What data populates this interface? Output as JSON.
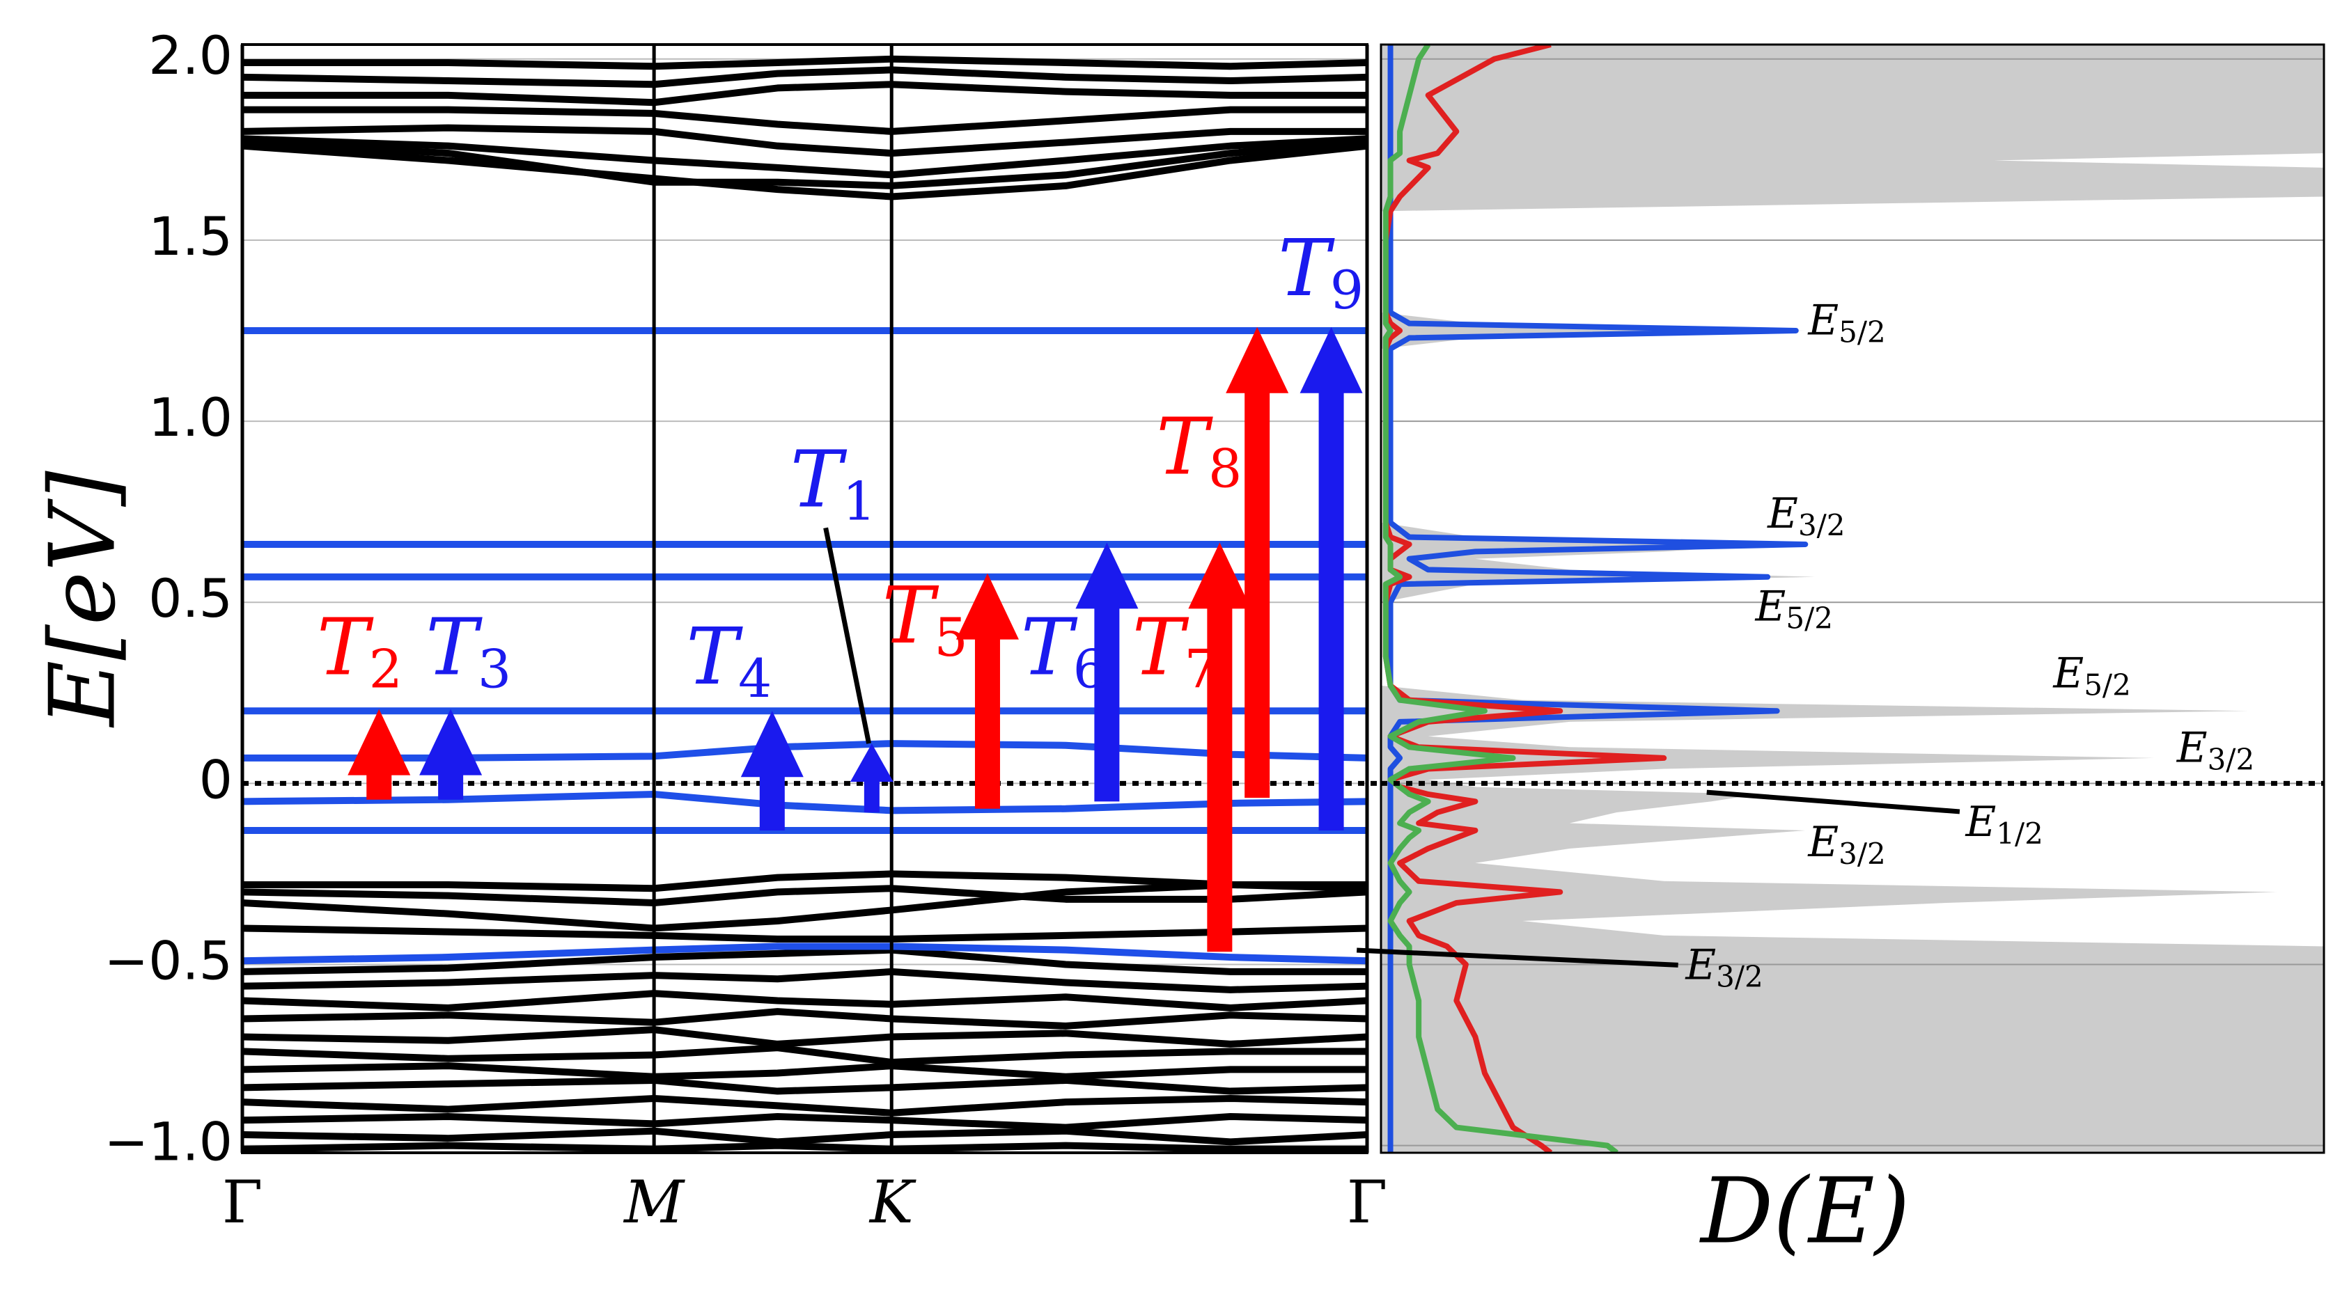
{
  "chart_data": [
    {
      "type": "line",
      "ylabel": "E[eV]",
      "x": [
        0,
        0.5,
        1,
        1.3,
        1.577,
        2.0,
        2.4,
        2.732
      ],
      "xlim": [
        0,
        2.732
      ],
      "xticks": [
        {
          "value": 0,
          "label": "Γ"
        },
        {
          "value": 1,
          "label": "M"
        },
        {
          "value": 1.577,
          "label": "K"
        },
        {
          "value": 2.732,
          "label": "Γ"
        }
      ],
      "ylim": [
        -1.02,
        2.04
      ],
      "yticks": [
        {
          "value": 2,
          "label": "2.0"
        },
        {
          "value": 1.5,
          "label": "1.5"
        },
        {
          "value": 1,
          "label": "1.0"
        },
        {
          "value": 0.5,
          "label": "0.5"
        },
        0,
        {
          "value": -0.5,
          "label": "−0.5"
        },
        {
          "value": -1,
          "label": "−1.0"
        }
      ],
      "grid": true,
      "reference_line": 0,
      "series": [
        {
          "color": "#000000",
          "values": [
            1.99,
            1.99,
            1.98,
            1.99,
            2.0,
            1.99,
            1.98,
            1.99
          ]
        },
        {
          "color": "#000000",
          "values": [
            1.95,
            1.94,
            1.93,
            1.96,
            1.97,
            1.95,
            1.94,
            1.95
          ]
        },
        {
          "color": "#000000",
          "values": [
            1.9,
            1.9,
            1.88,
            1.92,
            1.93,
            1.91,
            1.9,
            1.9
          ]
        },
        {
          "color": "#000000",
          "values": [
            1.86,
            1.86,
            1.85,
            1.82,
            1.8,
            1.83,
            1.86,
            1.86
          ]
        },
        {
          "color": "#000000",
          "values": [
            1.8,
            1.81,
            1.8,
            1.76,
            1.74,
            1.77,
            1.8,
            1.8
          ]
        },
        {
          "color": "#000000",
          "values": [
            1.78,
            1.76,
            1.72,
            1.7,
            1.68,
            1.72,
            1.76,
            1.78
          ]
        },
        {
          "color": "#000000",
          "values": [
            1.76,
            1.72,
            1.67,
            1.64,
            1.62,
            1.65,
            1.72,
            1.76
          ]
        },
        {
          "color": "#000000",
          "values": [
            1.77,
            1.74,
            1.66,
            1.66,
            1.65,
            1.68,
            1.74,
            1.77
          ]
        },
        {
          "color": "#000000",
          "values": [
            -0.28,
            -0.28,
            -0.29,
            -0.26,
            -0.25,
            -0.26,
            -0.28,
            -0.28
          ]
        },
        {
          "color": "#000000",
          "values": [
            -0.3,
            -0.31,
            -0.33,
            -0.3,
            -0.29,
            -0.32,
            -0.32,
            -0.3
          ]
        },
        {
          "color": "#000000",
          "values": [
            -0.33,
            -0.36,
            -0.4,
            -0.38,
            -0.35,
            -0.3,
            -0.28,
            -0.29
          ]
        },
        {
          "color": "#000000",
          "values": [
            -0.4,
            -0.41,
            -0.42,
            -0.43,
            -0.43,
            -0.42,
            -0.41,
            -0.4
          ]
        },
        {
          "color": "#000000",
          "values": [
            -0.52,
            -0.51,
            -0.48,
            -0.47,
            -0.46,
            -0.5,
            -0.52,
            -0.52
          ]
        },
        {
          "color": "#000000",
          "values": [
            -0.56,
            -0.55,
            -0.53,
            -0.54,
            -0.52,
            -0.55,
            -0.57,
            -0.56
          ]
        },
        {
          "color": "#000000",
          "values": [
            -0.6,
            -0.62,
            -0.58,
            -0.6,
            -0.61,
            -0.59,
            -0.62,
            -0.6
          ]
        },
        {
          "color": "#000000",
          "values": [
            -0.65,
            -0.64,
            -0.66,
            -0.63,
            -0.65,
            -0.67,
            -0.64,
            -0.65
          ]
        },
        {
          "color": "#000000",
          "values": [
            -0.7,
            -0.71,
            -0.68,
            -0.72,
            -0.7,
            -0.69,
            -0.72,
            -0.7
          ]
        },
        {
          "color": "#000000",
          "values": [
            -0.74,
            -0.76,
            -0.75,
            -0.73,
            -0.77,
            -0.75,
            -0.74,
            -0.74
          ]
        },
        {
          "color": "#000000",
          "values": [
            -0.79,
            -0.78,
            -0.81,
            -0.8,
            -0.78,
            -0.81,
            -0.79,
            -0.79
          ]
        },
        {
          "color": "#000000",
          "values": [
            -0.84,
            -0.83,
            -0.82,
            -0.85,
            -0.84,
            -0.82,
            -0.85,
            -0.84
          ]
        },
        {
          "color": "#000000",
          "values": [
            -0.88,
            -0.9,
            -0.87,
            -0.89,
            -0.91,
            -0.88,
            -0.87,
            -0.88
          ]
        },
        {
          "color": "#000000",
          "values": [
            -0.93,
            -0.92,
            -0.94,
            -0.92,
            -0.93,
            -0.95,
            -0.92,
            -0.93
          ]
        },
        {
          "color": "#000000",
          "values": [
            -0.97,
            -0.98,
            -0.96,
            -0.99,
            -0.97,
            -0.96,
            -0.99,
            -0.97
          ]
        },
        {
          "color": "#000000",
          "values": [
            -1.01,
            -1.0,
            -1.01,
            -1.0,
            -1.01,
            -1.0,
            -1.01,
            -1.01
          ]
        },
        {
          "color": "#1f4fe8",
          "values": [
            1.25,
            1.25,
            1.25,
            1.25,
            1.25,
            1.25,
            1.25,
            1.25
          ]
        },
        {
          "color": "#1f4fe8",
          "values": [
            0.66,
            0.66,
            0.66,
            0.66,
            0.66,
            0.66,
            0.66,
            0.66
          ]
        },
        {
          "color": "#1f4fe8",
          "values": [
            0.57,
            0.57,
            0.57,
            0.57,
            0.57,
            0.57,
            0.57,
            0.57
          ]
        },
        {
          "color": "#1f4fe8",
          "values": [
            0.2,
            0.2,
            0.2,
            0.2,
            0.2,
            0.2,
            0.2,
            0.2
          ]
        },
        {
          "color": "#1f4fe8",
          "values": [
            0.07,
            0.07,
            0.075,
            0.1,
            0.11,
            0.105,
            0.08,
            0.07
          ]
        },
        {
          "color": "#1f4fe8",
          "values": [
            -0.05,
            -0.045,
            -0.03,
            -0.06,
            -0.075,
            -0.07,
            -0.055,
            -0.05
          ]
        },
        {
          "color": "#1f4fe8",
          "values": [
            -0.13,
            -0.13,
            -0.13,
            -0.13,
            -0.13,
            -0.13,
            -0.13,
            -0.13
          ]
        },
        {
          "color": "#1f4fe8",
          "values": [
            -0.49,
            -0.48,
            -0.46,
            -0.45,
            -0.45,
            -0.46,
            -0.48,
            -0.49
          ]
        }
      ],
      "annotations": [
        {
          "label": "T",
          "subscript": "2",
          "color": "#ff0000",
          "x": 0.332,
          "y_start": -0.045,
          "y_end": 0.205
        },
        {
          "label": "T",
          "subscript": "3",
          "color": "#1a1aee",
          "x": 0.506,
          "y_start": -0.045,
          "y_end": 0.205
        },
        {
          "label": "T",
          "subscript": "4",
          "color": "#1a1aee",
          "x": 1.287,
          "y_start": -0.13,
          "y_end": 0.2
        },
        {
          "label": "T",
          "subscript": "1",
          "color": "#1a1aee",
          "x": 1.529,
          "y_start": -0.08,
          "y_end": 0.11
        },
        {
          "label": "T",
          "subscript": "5",
          "color": "#ff0000",
          "x": 1.81,
          "y_start": -0.07,
          "y_end": 0.58
        },
        {
          "label": "T",
          "subscript": "6",
          "color": "#1a1aee",
          "x": 2.1,
          "y_start": -0.05,
          "y_end": 0.665
        },
        {
          "label": "T",
          "subscript": "7",
          "color": "#ff0000",
          "x": 2.374,
          "y_start": -0.465,
          "y_end": 0.665
        },
        {
          "label": "T",
          "subscript": "8",
          "color": "#ff0000",
          "x": 2.465,
          "y_start": -0.04,
          "y_end": 1.26
        },
        {
          "label": "T",
          "subscript": "9",
          "color": "#1a1aee",
          "x": 2.645,
          "y_start": -0.13,
          "y_end": 1.26
        }
      ]
    },
    {
      "type": "area",
      "xlabel": "D(E)",
      "xlim": [
        0,
        1
      ],
      "ylim": [
        -1.02,
        2.04
      ],
      "yticks": [
        -1,
        -0.5,
        0,
        0.5,
        1,
        1.5,
        2
      ],
      "show_tick_labels": false,
      "grid": true,
      "reference_line": 0,
      "y": [
        -1.02,
        -1.0,
        -0.95,
        -0.9,
        -0.8,
        -0.7,
        -0.6,
        -0.5,
        -0.45,
        -0.42,
        -0.38,
        -0.33,
        -0.3,
        -0.27,
        -0.22,
        -0.18,
        -0.15,
        -0.13,
        -0.11,
        -0.08,
        -0.05,
        -0.03,
        -0.01,
        0.01,
        0.04,
        0.07,
        0.1,
        0.13,
        0.17,
        0.2,
        0.23,
        0.27,
        0.35,
        0.5,
        0.55,
        0.57,
        0.59,
        0.62,
        0.64,
        0.66,
        0.68,
        0.72,
        0.9,
        1.2,
        1.23,
        1.25,
        1.27,
        1.3,
        1.5,
        1.58,
        1.62,
        1.7,
        1.72,
        1.74,
        1.8,
        1.9,
        2.0,
        2.04
      ],
      "series": [
        {
          "color": "#cccccc",
          "fill": true,
          "values": [
            1,
            1,
            1,
            1,
            1,
            1,
            1,
            1,
            1,
            0.3,
            0.15,
            0.6,
            0.95,
            0.3,
            0.1,
            0.2,
            0.35,
            0.45,
            0.2,
            0.25,
            0.35,
            0.4,
            0.1,
            0.05,
            0.3,
            0.82,
            0.2,
            0.05,
            0.2,
            0.92,
            0.15,
            0,
            0,
            0,
            0.1,
            0.46,
            0.2,
            0.1,
            0.3,
            0.42,
            0.1,
            0,
            0,
            0,
            0.1,
            0.45,
            0.1,
            0,
            0,
            0,
            1,
            1,
            0.65,
            1,
            1,
            1,
            1,
            1
          ]
        },
        {
          "color": "#1f4fe0",
          "values": [
            0.01,
            0.01,
            0.01,
            0.01,
            0.01,
            0.01,
            0.01,
            0.01,
            0.01,
            0.01,
            0.01,
            0.01,
            0.01,
            0.01,
            0.01,
            0.01,
            0.01,
            0.01,
            0.01,
            0.01,
            0.01,
            0.01,
            0.01,
            0.01,
            0.01,
            0.02,
            0.01,
            0.01,
            0.02,
            0.42,
            0.02,
            0.01,
            0.01,
            0.01,
            0.02,
            0.41,
            0.05,
            0.03,
            0.1,
            0.45,
            0.03,
            0.01,
            0.01,
            0.01,
            0.03,
            0.44,
            0.03,
            0.01,
            0.01,
            0.01,
            0.01,
            0.01,
            0.01,
            0.01,
            0.01,
            0.01,
            0.01,
            0.01
          ]
        },
        {
          "color": "#e02020",
          "values": [
            0.18,
            0.17,
            0.14,
            0.13,
            0.11,
            0.1,
            0.08,
            0.09,
            0.07,
            0.04,
            0.03,
            0.08,
            0.19,
            0.04,
            0.02,
            0.05,
            0.08,
            0.1,
            0.04,
            0.06,
            0.1,
            0.05,
            0.02,
            0.01,
            0.05,
            0.3,
            0.04,
            0.01,
            0.05,
            0.19,
            0.03,
            0.01,
            0.005,
            0.005,
            0.01,
            0.03,
            0.01,
            0.01,
            0.02,
            0.03,
            0.01,
            0.005,
            0.005,
            0.005,
            0.01,
            0.02,
            0.01,
            0.005,
            0.005,
            0.01,
            0.02,
            0.05,
            0.03,
            0.06,
            0.08,
            0.05,
            0.12,
            0.18
          ]
        },
        {
          "color": "#4caf50",
          "values": [
            0.25,
            0.24,
            0.08,
            0.06,
            0.05,
            0.04,
            0.04,
            0.03,
            0.03,
            0.02,
            0.01,
            0.02,
            0.03,
            0.02,
            0.01,
            0.02,
            0.03,
            0.04,
            0.02,
            0.03,
            0.05,
            0.03,
            0.02,
            0.01,
            0.03,
            0.14,
            0.03,
            0.01,
            0.04,
            0.11,
            0.02,
            0.01,
            0.005,
            0.005,
            0.005,
            0.02,
            0.01,
            0.01,
            0.01,
            0.01,
            0.005,
            0.005,
            0.005,
            0.005,
            0.005,
            0.01,
            0.005,
            0.005,
            0.005,
            0.005,
            0.01,
            0.01,
            0.01,
            0.02,
            0.02,
            0.03,
            0.04,
            0.05
          ]
        }
      ],
      "annotations": [
        {
          "label": "E",
          "subscript": "5/2",
          "x": 0.453,
          "y": 1.27
        },
        {
          "label": "E",
          "subscript": "3/2",
          "x": 0.41,
          "y": 0.737
        },
        {
          "label": "E",
          "subscript": "5/2",
          "x": 0.397,
          "y": 0.48
        },
        {
          "label": "E",
          "subscript": "5/2",
          "x": 0.713,
          "y": 0.296
        },
        {
          "label": "E",
          "subscript": "3/2",
          "x": 0.844,
          "y": 0.09
        },
        {
          "label": "E",
          "subscript": "1/2",
          "x": 0.62,
          "y": -0.115
        },
        {
          "label": "E",
          "subscript": "3/2",
          "x": 0.453,
          "y": -0.17
        },
        {
          "label": "E",
          "subscript": "3/2",
          "x": 0.323,
          "y": -0.51
        }
      ]
    }
  ]
}
